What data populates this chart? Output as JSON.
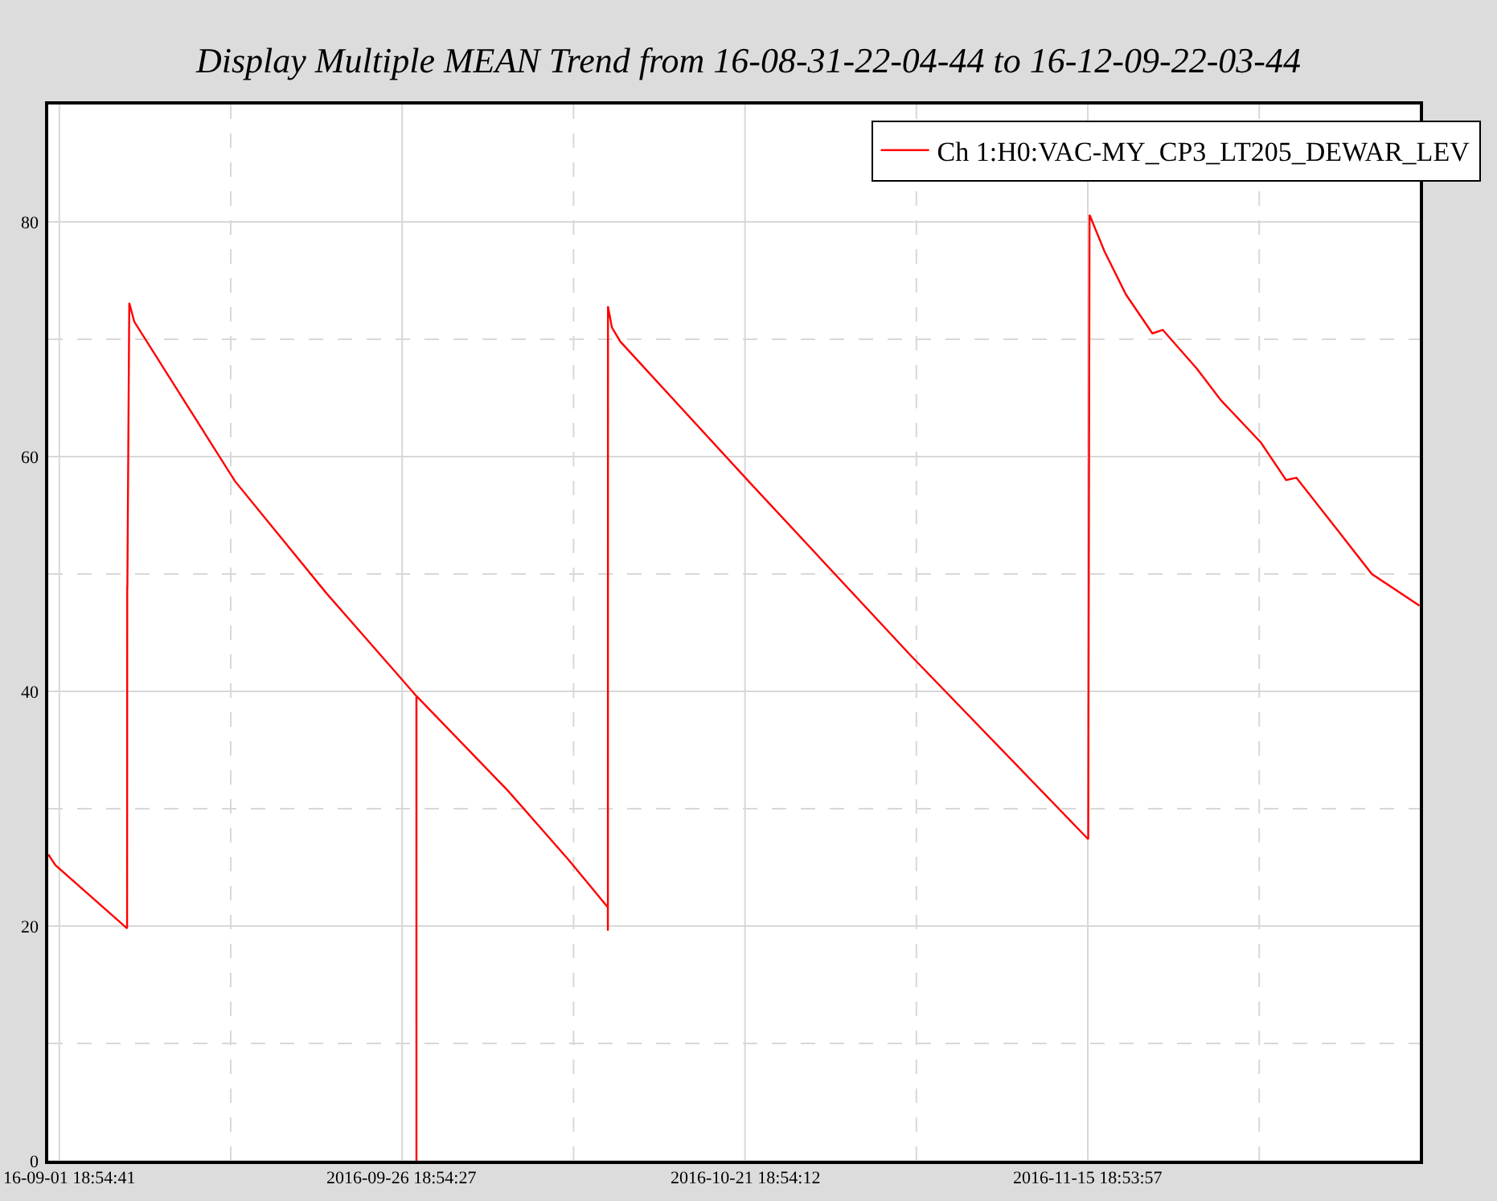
{
  "chart_data": {
    "type": "line",
    "title": "Display Multiple MEAN Trend from 16-08-31-22-04-44 to 16-12-09-22-03-44",
    "x": [
      "2016-08-31T23:40",
      "2016-09-01T12:00",
      "2016-09-06T17:30",
      "2016-09-06T17:45",
      "2016-09-06T18:00",
      "2016-09-06T21:20",
      "2016-09-07T06:00",
      "2016-09-14T14:25",
      "2016-09-21T05:40",
      "2016-09-27T19:50",
      "2016-09-27T19:55",
      "2016-09-27T20:00",
      "2016-10-04T12:40",
      "2016-10-08T23:00",
      "2016-10-11T18:55",
      "2016-10-11T19:00",
      "2016-10-11T19:10",
      "2016-10-12T02:00",
      "2016-10-12T16:45",
      "2016-10-22T01:10",
      "2016-11-02T20:05",
      "2016-11-15T19:40",
      "2016-11-15T22:00",
      "2016-11-17T00:00",
      "2016-11-18T13:50",
      "2016-11-20T12:00",
      "2016-11-21T06:00",
      "2016-11-23T17:40",
      "2016-11-25T12:00",
      "2016-11-28T09:50",
      "2016-11-30T06:00",
      "2016-12-01T00:00",
      "2016-12-03T19:40",
      "2016-12-06T12:00",
      "2016-12-09T23:30"
    ],
    "series": [
      {
        "name": "Ch 1:H0:VAC-MY_CP3_LT205_DEWAR_LEV",
        "color": "#ff0000",
        "values": [
          26.1,
          25.2,
          19.8,
          48.9,
          48.9,
          73.1,
          71.5,
          57.9,
          48.4,
          39.6,
          0,
          39.6,
          31.5,
          25.6,
          21.6,
          19.6,
          72.8,
          71.0,
          69.8,
          57.9,
          43.1,
          27.4,
          80.6,
          77.5,
          73.8,
          70.5,
          70.8,
          67.5,
          64.8,
          61.2,
          58.0,
          58.2,
          54.0,
          50.0,
          47.3
        ]
      }
    ],
    "xlim": [
      "2016-08-31T23:30",
      "2016-12-10T00:00"
    ],
    "xticks": [
      {
        "value": "2016-09-01T18:54:41",
        "label": "16-09-01 18:54:41"
      },
      {
        "value": "2016-09-14T06:54:34",
        "label": null
      },
      {
        "value": "2016-09-26T18:54:27",
        "label": "2016-09-26 18:54:27"
      },
      {
        "value": "2016-10-09T06:54:20",
        "label": null
      },
      {
        "value": "2016-10-21T18:54:12",
        "label": "2016-10-21 18:54:12"
      },
      {
        "value": "2016-11-03T06:54:05",
        "label": null
      },
      {
        "value": "2016-11-15T18:53:57",
        "label": "2016-11-15 18:53:57"
      },
      {
        "value": "2016-11-28T06:53:50",
        "label": null
      }
    ],
    "ylim": [
      0,
      90
    ],
    "yticks": [
      0,
      {
        "value": 10,
        "label": null
      },
      20,
      {
        "value": 30,
        "label": null
      },
      40,
      {
        "value": 50,
        "label": null
      },
      60,
      {
        "value": 70,
        "label": null
      },
      80
    ],
    "grid": true,
    "legend": "top right",
    "line_style": "solid",
    "marker": "none"
  }
}
